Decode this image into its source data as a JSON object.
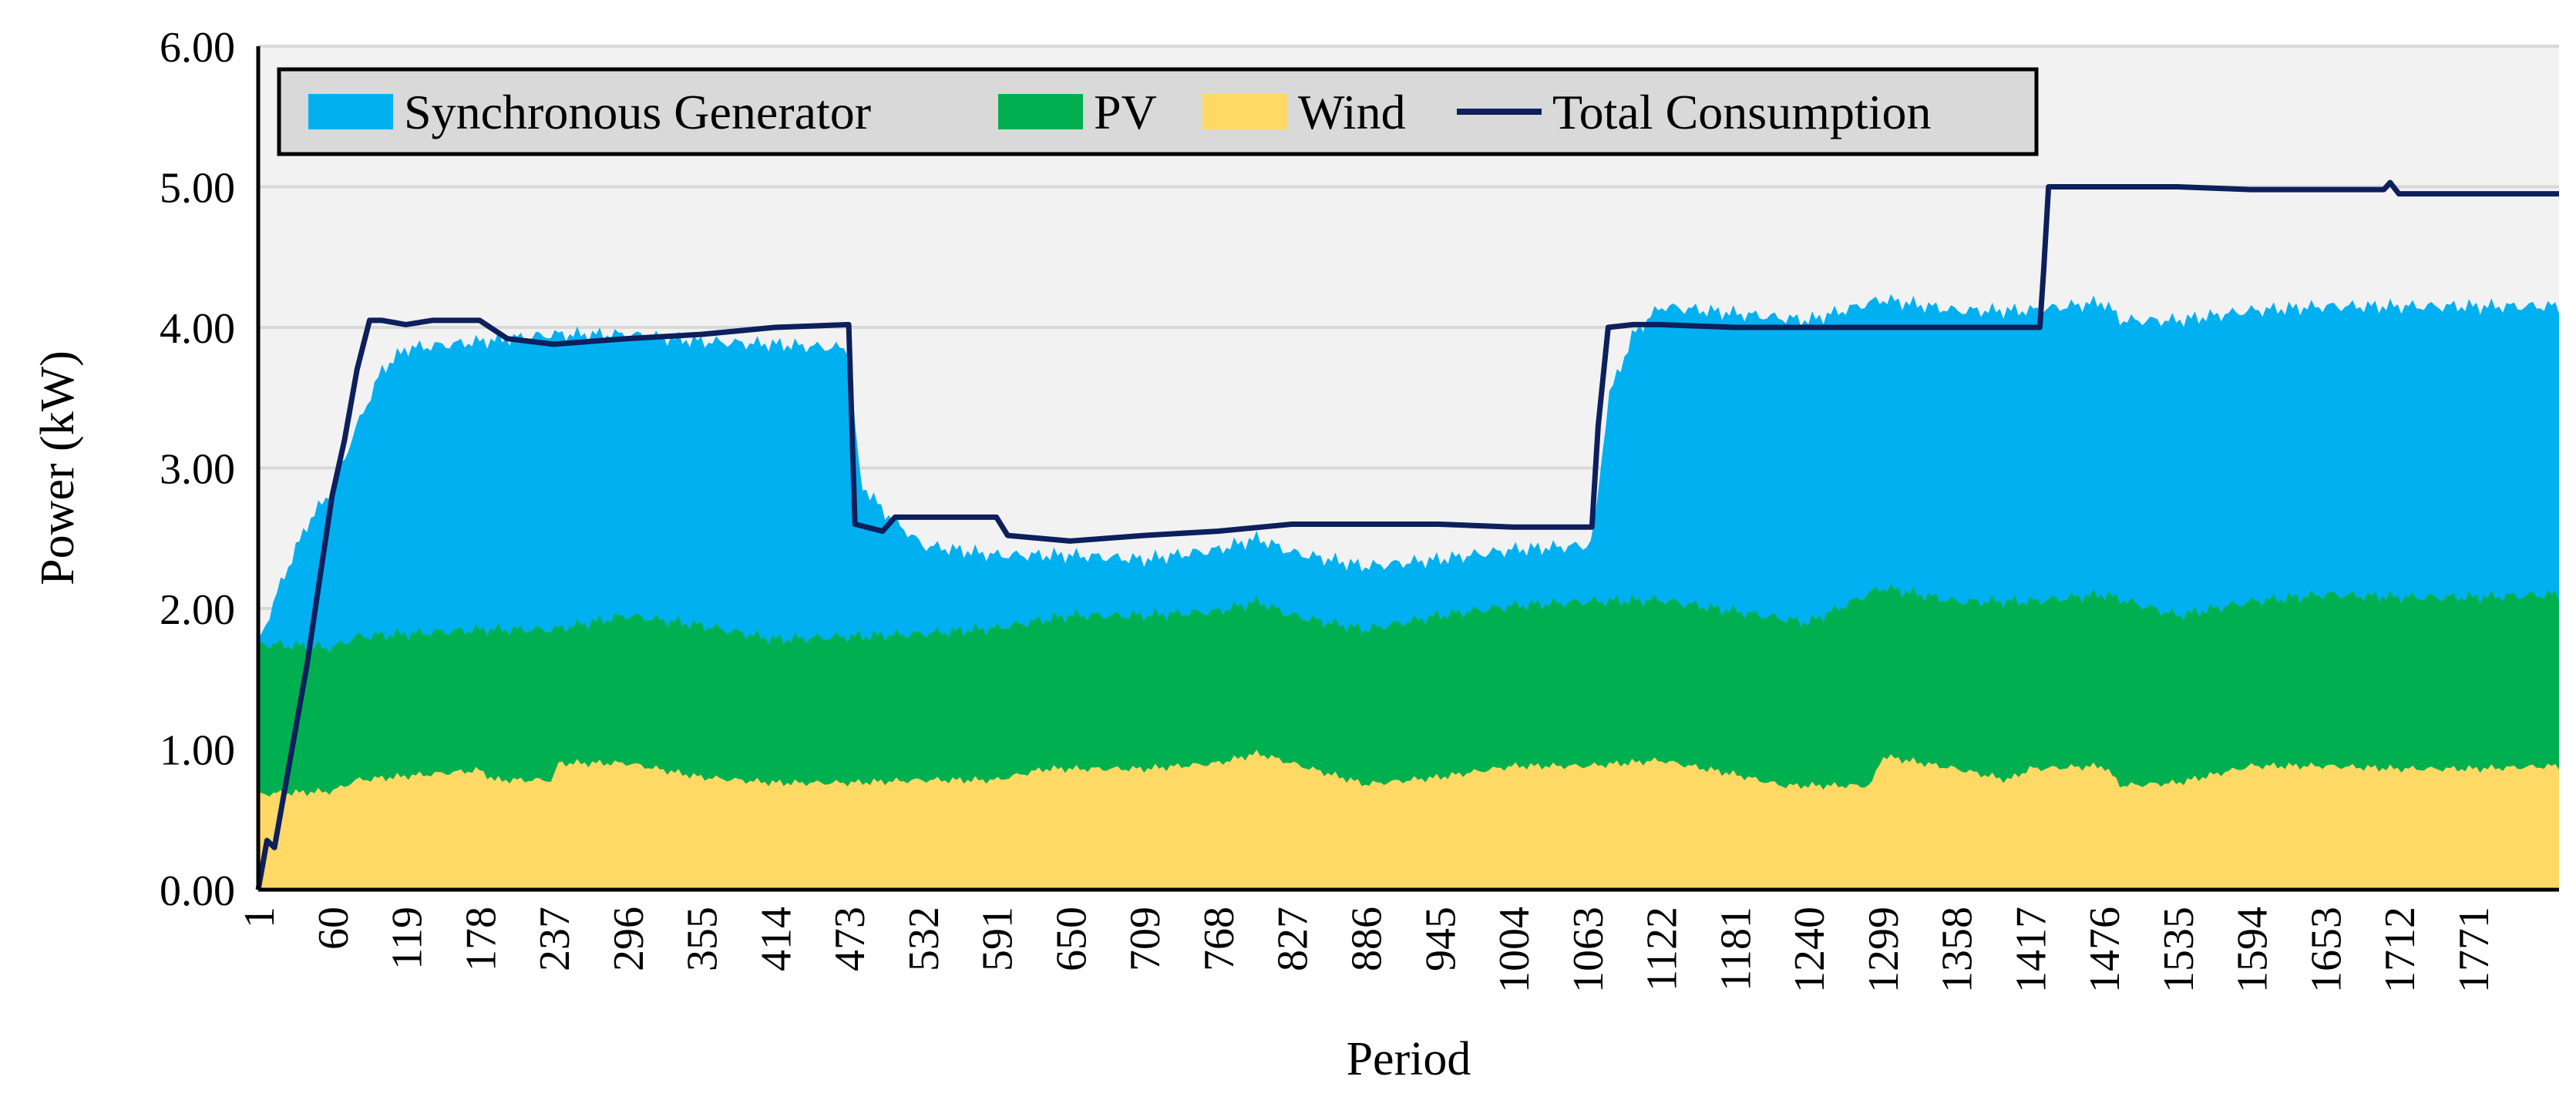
{
  "chart_data": {
    "type": "area",
    "title": "",
    "xlabel": "Period",
    "ylabel": "Power (kW)",
    "ylim": [
      0,
      6
    ],
    "grid": true,
    "legend_position": "top-left",
    "y_ticks": [
      "0.00",
      "1.00",
      "2.00",
      "3.00",
      "4.00",
      "5.00",
      "6.00"
    ],
    "x_ticks": [
      "1",
      "60",
      "119",
      "178",
      "237",
      "296",
      "355",
      "414",
      "473",
      "532",
      "591",
      "650",
      "709",
      "768",
      "827",
      "886",
      "945",
      "1004",
      "1063",
      "1122",
      "1181",
      "1240",
      "1299",
      "1358",
      "1417",
      "1476",
      "1535",
      "1594",
      "1653",
      "1712",
      "1771"
    ],
    "x_range": [
      1,
      1840
    ],
    "colors": {
      "wind": "#FFD966",
      "pv": "#00B050",
      "sync": "#00B0F0",
      "consumption": "#0D1F5C",
      "plot_bg": "#F2F2F2"
    },
    "legend": [
      {
        "key": "sync",
        "label": "Synchronous Generator",
        "kind": "area"
      },
      {
        "key": "pv",
        "label": "PV",
        "kind": "area"
      },
      {
        "key": "wind",
        "label": "Wind",
        "kind": "area"
      },
      {
        "key": "consumption",
        "label": "Total Consumption",
        "kind": "line"
      }
    ],
    "series": [
      {
        "name": "Wind",
        "key": "wind",
        "stack_top": [
          [
            1,
            0.68
          ],
          [
            60,
            0.7
          ],
          [
            80,
            0.78
          ],
          [
            178,
            0.85
          ],
          [
            190,
            0.78
          ],
          [
            237,
            0.78
          ],
          [
            240,
            0.9
          ],
          [
            296,
            0.9
          ],
          [
            355,
            0.8
          ],
          [
            414,
            0.76
          ],
          [
            473,
            0.76
          ],
          [
            532,
            0.78
          ],
          [
            591,
            0.78
          ],
          [
            630,
            0.86
          ],
          [
            709,
            0.86
          ],
          [
            768,
            0.9
          ],
          [
            800,
            0.97
          ],
          [
            827,
            0.9
          ],
          [
            886,
            0.75
          ],
          [
            945,
            0.8
          ],
          [
            1004,
            0.88
          ],
          [
            1063,
            0.88
          ],
          [
            1122,
            0.92
          ],
          [
            1181,
            0.82
          ],
          [
            1220,
            0.74
          ],
          [
            1240,
            0.74
          ],
          [
            1290,
            0.74
          ],
          [
            1299,
            0.95
          ],
          [
            1358,
            0.86
          ],
          [
            1400,
            0.78
          ],
          [
            1417,
            0.86
          ],
          [
            1476,
            0.88
          ],
          [
            1490,
            0.74
          ],
          [
            1535,
            0.76
          ],
          [
            1594,
            0.88
          ],
          [
            1653,
            0.88
          ],
          [
            1712,
            0.86
          ],
          [
            1771,
            0.86
          ],
          [
            1840,
            0.88
          ]
        ]
      },
      {
        "name": "PV",
        "key": "pv",
        "stack_top": [
          [
            1,
            1.75
          ],
          [
            60,
            1.72
          ],
          [
            80,
            1.8
          ],
          [
            178,
            1.85
          ],
          [
            237,
            1.85
          ],
          [
            296,
            1.95
          ],
          [
            355,
            1.88
          ],
          [
            414,
            1.78
          ],
          [
            473,
            1.8
          ],
          [
            532,
            1.82
          ],
          [
            591,
            1.86
          ],
          [
            650,
            1.95
          ],
          [
            709,
            1.95
          ],
          [
            768,
            1.98
          ],
          [
            800,
            2.05
          ],
          [
            827,
            1.95
          ],
          [
            886,
            1.85
          ],
          [
            945,
            1.95
          ],
          [
            1004,
            2.02
          ],
          [
            1063,
            2.05
          ],
          [
            1122,
            2.06
          ],
          [
            1181,
            1.98
          ],
          [
            1240,
            1.9
          ],
          [
            1299,
            2.15
          ],
          [
            1358,
            2.05
          ],
          [
            1417,
            2.05
          ],
          [
            1476,
            2.1
          ],
          [
            1535,
            1.95
          ],
          [
            1594,
            2.05
          ],
          [
            1653,
            2.1
          ],
          [
            1712,
            2.08
          ],
          [
            1771,
            2.08
          ],
          [
            1840,
            2.1
          ]
        ]
      },
      {
        "name": "Synchronous Generator",
        "key": "sync",
        "stack_top": [
          [
            1,
            1.75
          ],
          [
            20,
            2.2
          ],
          [
            40,
            2.6
          ],
          [
            60,
            2.85
          ],
          [
            80,
            3.3
          ],
          [
            100,
            3.7
          ],
          [
            119,
            3.85
          ],
          [
            178,
            3.9
          ],
          [
            237,
            3.95
          ],
          [
            296,
            3.95
          ],
          [
            355,
            3.9
          ],
          [
            414,
            3.88
          ],
          [
            473,
            3.85
          ],
          [
            482,
            2.9
          ],
          [
            500,
            2.7
          ],
          [
            532,
            2.45
          ],
          [
            591,
            2.38
          ],
          [
            650,
            2.38
          ],
          [
            709,
            2.35
          ],
          [
            768,
            2.42
          ],
          [
            800,
            2.5
          ],
          [
            827,
            2.4
          ],
          [
            886,
            2.3
          ],
          [
            945,
            2.35
          ],
          [
            1004,
            2.42
          ],
          [
            1063,
            2.45
          ],
          [
            1068,
            2.5
          ],
          [
            1080,
            3.5
          ],
          [
            1100,
            3.95
          ],
          [
            1122,
            4.15
          ],
          [
            1181,
            4.1
          ],
          [
            1240,
            4.05
          ],
          [
            1299,
            4.2
          ],
          [
            1358,
            4.12
          ],
          [
            1417,
            4.12
          ],
          [
            1476,
            4.18
          ],
          [
            1490,
            4.05
          ],
          [
            1535,
            4.05
          ],
          [
            1594,
            4.12
          ],
          [
            1653,
            4.15
          ],
          [
            1712,
            4.15
          ],
          [
            1771,
            4.15
          ],
          [
            1840,
            4.15
          ]
        ]
      },
      {
        "name": "Total Consumption",
        "key": "consumption",
        "values": [
          [
            1,
            0.0
          ],
          [
            8,
            0.35
          ],
          [
            14,
            0.3
          ],
          [
            20,
            0.6
          ],
          [
            30,
            1.1
          ],
          [
            40,
            1.6
          ],
          [
            50,
            2.2
          ],
          [
            60,
            2.8
          ],
          [
            70,
            3.2
          ],
          [
            80,
            3.7
          ],
          [
            90,
            4.05
          ],
          [
            100,
            4.05
          ],
          [
            119,
            4.02
          ],
          [
            140,
            4.05
          ],
          [
            178,
            4.05
          ],
          [
            200,
            3.92
          ],
          [
            237,
            3.88
          ],
          [
            296,
            3.92
          ],
          [
            355,
            3.95
          ],
          [
            414,
            4.0
          ],
          [
            473,
            4.02
          ],
          [
            478,
            2.6
          ],
          [
            500,
            2.55
          ],
          [
            510,
            2.65
          ],
          [
            532,
            2.65
          ],
          [
            591,
            2.65
          ],
          [
            600,
            2.52
          ],
          [
            650,
            2.48
          ],
          [
            709,
            2.52
          ],
          [
            768,
            2.55
          ],
          [
            827,
            2.6
          ],
          [
            886,
            2.6
          ],
          [
            945,
            2.6
          ],
          [
            1004,
            2.58
          ],
          [
            1063,
            2.58
          ],
          [
            1067,
            2.58
          ],
          [
            1072,
            3.3
          ],
          [
            1080,
            4.0
          ],
          [
            1100,
            4.02
          ],
          [
            1122,
            4.02
          ],
          [
            1181,
            4.0
          ],
          [
            1240,
            4.0
          ],
          [
            1299,
            4.0
          ],
          [
            1358,
            4.0
          ],
          [
            1417,
            4.0
          ],
          [
            1425,
            4.0
          ],
          [
            1428,
            4.4
          ],
          [
            1432,
            5.0
          ],
          [
            1476,
            5.0
          ],
          [
            1535,
            5.0
          ],
          [
            1594,
            4.98
          ],
          [
            1653,
            4.98
          ],
          [
            1700,
            4.98
          ],
          [
            1705,
            5.03
          ],
          [
            1712,
            4.95
          ],
          [
            1771,
            4.95
          ],
          [
            1840,
            4.95
          ]
        ]
      }
    ]
  }
}
